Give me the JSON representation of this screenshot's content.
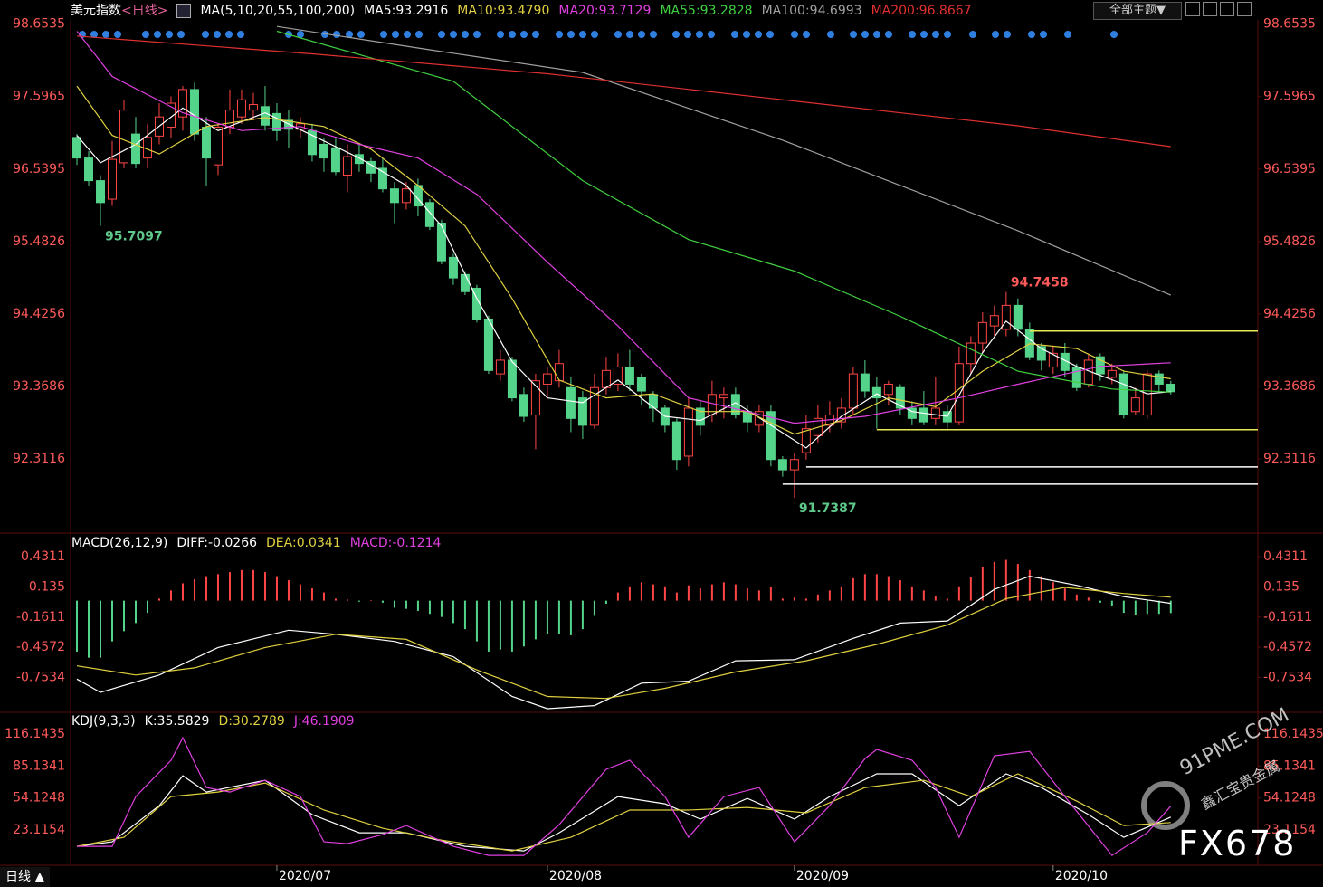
{
  "header": {
    "symbol": "美元指数",
    "period": "<日线>",
    "theme_button": "全部主题▼",
    "period_tab": "日线 ▲"
  },
  "watermark": {
    "site": "91PME.COM",
    "site_cn": "鑫汇宝贵金属",
    "brand": "FX678"
  },
  "chart_data": [
    {
      "type": "candlestick",
      "title": "MA(5,10,20,55,100,200)",
      "up_color": "#ff4545",
      "down_color": "#54d48a",
      "xlim": [
        -0.5,
        100.4
      ],
      "ylim": [
        91.24,
        98.94
      ],
      "yticks": [
        98.6535,
        97.5965,
        96.5395,
        95.4826,
        94.4256,
        93.3686,
        92.3116
      ],
      "open": [
        97.0,
        96.7,
        96.37,
        96.1,
        96.63,
        97.05,
        96.7,
        97.02,
        97.15,
        97.3,
        97.7,
        97.15,
        96.6,
        97.15,
        97.3,
        97.4,
        97.45,
        97.35,
        97.25,
        97.12,
        97.1,
        96.9,
        96.85,
        96.45,
        96.75,
        96.65,
        96.55,
        96.25,
        96.05,
        96.3,
        96.05,
        95.75,
        95.25,
        95.0,
        94.8,
        94.35,
        93.55,
        93.75,
        93.25,
        92.95,
        93.4,
        93.45,
        93.35,
        93.2,
        92.8,
        93.35,
        93.4,
        93.65,
        93.5,
        93.25,
        93.05,
        92.85,
        92.35,
        93.05,
        92.95,
        93.2,
        93.25,
        93.0,
        92.8,
        93.0,
        92.3,
        92.15,
        92.4,
        92.65,
        92.8,
        92.85,
        93.05,
        93.55,
        93.35,
        93.25,
        93.35,
        93.05,
        93.05,
        92.9,
        93.0,
        92.85,
        93.7,
        94.0,
        94.25,
        94.2,
        94.55,
        94.2,
        93.95,
        93.65,
        93.85,
        93.65,
        93.4,
        93.8,
        93.5,
        93.55,
        93.0,
        92.95,
        93.55,
        93.4
      ],
      "high": [
        97.05,
        96.8,
        96.45,
        96.95,
        97.55,
        97.3,
        97.2,
        97.5,
        97.6,
        97.75,
        97.8,
        97.3,
        97.2,
        97.7,
        97.7,
        97.65,
        97.75,
        97.5,
        97.4,
        97.3,
        97.2,
        97.0,
        97.0,
        96.9,
        96.9,
        96.7,
        96.7,
        96.35,
        96.35,
        96.4,
        96.1,
        95.8,
        95.3,
        95.05,
        94.85,
        94.4,
        93.9,
        93.8,
        93.35,
        93.55,
        93.65,
        93.9,
        93.5,
        93.3,
        93.55,
        93.8,
        93.85,
        93.9,
        93.55,
        93.3,
        93.1,
        92.9,
        93.2,
        93.15,
        93.45,
        93.35,
        93.35,
        93.1,
        93.1,
        93.1,
        92.35,
        92.4,
        92.95,
        93.1,
        93.15,
        93.2,
        93.65,
        93.75,
        93.5,
        93.45,
        93.4,
        93.15,
        93.3,
        93.5,
        93.1,
        93.95,
        94.1,
        94.45,
        94.55,
        94.7458,
        94.65,
        94.3,
        94.0,
        93.95,
        94.0,
        93.7,
        93.85,
        93.85,
        93.7,
        93.6,
        93.35,
        93.6,
        93.6,
        93.45
      ],
      "low": [
        96.6,
        96.3,
        95.7097,
        96.0,
        96.55,
        96.55,
        96.55,
        96.9,
        97.0,
        97.1,
        96.95,
        96.3,
        96.45,
        97.05,
        97.2,
        97.25,
        97.1,
        96.95,
        96.85,
        97.0,
        96.65,
        96.5,
        96.45,
        96.2,
        96.5,
        96.35,
        96.2,
        95.75,
        95.95,
        95.85,
        95.65,
        95.15,
        94.85,
        94.7,
        94.3,
        93.55,
        93.45,
        93.15,
        92.85,
        92.45,
        93.2,
        93.35,
        92.7,
        92.6,
        92.75,
        93.25,
        93.3,
        93.3,
        93.1,
        92.85,
        92.7,
        92.15,
        92.2,
        92.65,
        92.85,
        92.9,
        92.9,
        92.7,
        92.7,
        92.2,
        92.05,
        91.7387,
        92.3,
        92.55,
        92.7,
        92.75,
        92.95,
        93.2,
        92.75,
        93.1,
        92.95,
        92.8,
        92.8,
        92.8,
        92.75,
        92.8,
        93.55,
        93.85,
        94.1,
        94.1,
        94.1,
        93.75,
        93.6,
        93.55,
        93.5,
        93.3,
        93.35,
        93.45,
        93.4,
        92.9,
        92.95,
        92.9,
        93.3,
        93.25
      ],
      "close": [
        96.7,
        96.37,
        96.05,
        96.68,
        97.4,
        96.62,
        97.0,
        97.3,
        97.5,
        97.7,
        97.05,
        96.7,
        97.15,
        97.4,
        97.55,
        97.48,
        97.18,
        97.1,
        97.12,
        97.2,
        96.75,
        96.7,
        96.5,
        96.72,
        96.62,
        96.48,
        96.25,
        96.05,
        96.25,
        96.0,
        95.7,
        95.2,
        94.95,
        94.75,
        94.35,
        93.6,
        93.75,
        93.2,
        92.93,
        93.45,
        93.55,
        93.7,
        92.9,
        92.8,
        93.35,
        93.6,
        93.65,
        93.4,
        93.3,
        93.05,
        92.8,
        92.3,
        93.05,
        92.8,
        93.25,
        93.25,
        92.95,
        92.85,
        93.0,
        92.3,
        92.15,
        92.3,
        92.75,
        92.9,
        92.95,
        93.05,
        93.55,
        93.3,
        93.2,
        93.4,
        93.05,
        92.9,
        92.85,
        93.05,
        92.85,
        93.7,
        94.0,
        94.3,
        94.4,
        94.55,
        94.2,
        93.8,
        93.75,
        93.85,
        93.6,
        93.35,
        93.75,
        93.55,
        93.6,
        92.95,
        93.2,
        93.55,
        93.4,
        93.29
      ],
      "annotations": [
        {
          "x": 2,
          "value": 95.7097,
          "color": "#5ec98a"
        },
        {
          "x": 79,
          "value": 94.7458,
          "color": "#ff5a5a"
        },
        {
          "x": 61,
          "value": 91.7387,
          "color": "#5ec98a"
        }
      ],
      "hlines": [
        {
          "value": 92.193,
          "from": 62,
          "color": "#ffffff"
        },
        {
          "value": 91.942,
          "from": 60,
          "color": "#ffffff"
        },
        {
          "value": 94.175,
          "from": 81,
          "color": "#e8e850"
        },
        {
          "value": 92.735,
          "from": 68,
          "color": "#e8e850"
        }
      ],
      "series": [
        {
          "label": "MA5:93.2916",
          "color": "#ffffff",
          "x": [
            0,
            2,
            5,
            9,
            12,
            16,
            20,
            24,
            28,
            31,
            34,
            37,
            40,
            43,
            46,
            50,
            53,
            56,
            59,
            62,
            65,
            68,
            71,
            74,
            77,
            79,
            82,
            85,
            89,
            91,
            93
          ],
          "values": [
            97.03,
            96.63,
            96.9,
            97.43,
            97.1,
            97.36,
            97.03,
            96.7,
            96.3,
            95.71,
            94.65,
            93.73,
            93.2,
            93.13,
            93.46,
            92.93,
            92.87,
            93.13,
            92.8,
            92.47,
            92.93,
            93.26,
            93.0,
            92.93,
            93.86,
            94.32,
            93.92,
            93.66,
            93.4,
            93.26,
            93.2916
          ]
        },
        {
          "label": "MA10:93.4790",
          "color": "#e0d040",
          "x": [
            0,
            3,
            7,
            11,
            16,
            21,
            25,
            29,
            33,
            37,
            41,
            45,
            49,
            53,
            57,
            61,
            65,
            69,
            73,
            77,
            81,
            85,
            89,
            93
          ],
          "values": [
            97.75,
            97.03,
            96.76,
            97.16,
            97.29,
            97.16,
            96.83,
            96.3,
            95.71,
            94.65,
            93.46,
            93.2,
            93.26,
            93.0,
            93.0,
            92.67,
            92.87,
            93.2,
            93.07,
            93.59,
            93.99,
            93.92,
            93.59,
            93.479
          ]
        },
        {
          "label": "MA20:93.7129",
          "color": "#e040e0",
          "x": [
            0,
            3,
            9,
            14,
            19,
            24,
            29,
            34,
            40,
            46,
            52,
            57,
            61,
            67,
            75,
            80,
            87,
            93
          ],
          "values": [
            98.55,
            97.89,
            97.36,
            97.1,
            97.16,
            96.9,
            96.7,
            96.17,
            95.18,
            94.25,
            93.2,
            93.0,
            92.83,
            92.93,
            93.2,
            93.4,
            93.66,
            93.7129
          ]
        },
        {
          "label": "MA55:93.2828",
          "color": "#40d040",
          "x": [
            17,
            32,
            43,
            52,
            61,
            70,
            80,
            88,
            93
          ],
          "values": [
            98.55,
            97.82,
            96.37,
            95.51,
            95.05,
            94.39,
            93.59,
            93.33,
            93.2828
          ]
        },
        {
          "label": "MA100:94.6993",
          "color": "#a0a0a0",
          "x": [
            17,
            30,
            43,
            60,
            70,
            80,
            93
          ],
          "values": [
            98.62,
            98.28,
            97.95,
            96.96,
            96.3,
            95.64,
            94.6993
          ]
        },
        {
          "label": "MA200:96.8667",
          "color": "#e03030",
          "x": [
            0,
            20,
            40,
            60,
            80,
            93
          ],
          "values": [
            98.48,
            98.22,
            97.93,
            97.55,
            97.17,
            96.8667
          ]
        }
      ]
    },
    {
      "type": "bar",
      "title": "MACD(26,12,9)",
      "label": "MACD:-0.1214",
      "label_color": "#e040e0",
      "up_color": "#ff4545",
      "down_color": "#54d48a",
      "xlim": [
        -0.5,
        100.4
      ],
      "ylim": [
        -1.078,
        0.636
      ],
      "yticks": [
        0.4311,
        0.135,
        -0.1611,
        -0.4572,
        -0.7534
      ],
      "values": [
        -0.5,
        -0.56,
        -0.56,
        -0.4,
        -0.3,
        -0.22,
        -0.12,
        0.02,
        0.1,
        0.17,
        0.21,
        0.24,
        0.26,
        0.28,
        0.3,
        0.3,
        0.28,
        0.24,
        0.2,
        0.16,
        0.12,
        0.08,
        0.02,
        0.01,
        -0.01,
        0.005,
        -0.02,
        -0.07,
        -0.08,
        -0.1,
        -0.13,
        -0.16,
        -0.22,
        -0.28,
        -0.4,
        -0.5,
        -0.48,
        -0.5,
        -0.45,
        -0.38,
        -0.33,
        -0.33,
        -0.34,
        -0.28,
        -0.15,
        -0.03,
        0.08,
        0.14,
        0.18,
        0.16,
        0.14,
        0.08,
        0.15,
        0.12,
        0.16,
        0.18,
        0.16,
        0.12,
        0.1,
        0.13,
        0.02,
        0.03,
        0.02,
        0.06,
        0.1,
        0.14,
        0.22,
        0.26,
        0.26,
        0.24,
        0.2,
        0.14,
        0.1,
        0.04,
        0.02,
        0.14,
        0.23,
        0.33,
        0.38,
        0.4,
        0.36,
        0.3,
        0.24,
        0.18,
        0.12,
        0.06,
        0.03,
        -0.02,
        -0.05,
        -0.12,
        -0.14,
        -0.13,
        -0.13,
        -0.1214
      ],
      "series": [
        {
          "label": "DIFF:-0.0266",
          "color": "#ffffff",
          "x": [
            0,
            2,
            7,
            12,
            18,
            22,
            27,
            32,
            37,
            40,
            44,
            48,
            52,
            56,
            61,
            66,
            70,
            74,
            78,
            81,
            85,
            89,
            93
          ],
          "values": [
            -0.77,
            -0.9,
            -0.73,
            -0.46,
            -0.29,
            -0.33,
            -0.4,
            -0.55,
            -0.94,
            -1.06,
            -1.03,
            -0.81,
            -0.79,
            -0.59,
            -0.58,
            -0.37,
            -0.22,
            -0.2,
            0.11,
            0.24,
            0.15,
            0.04,
            -0.0266
          ]
        },
        {
          "label": "DEA:0.0341",
          "color": "#e0d040",
          "x": [
            0,
            5,
            10,
            16,
            22,
            28,
            34,
            40,
            45,
            50,
            56,
            62,
            68,
            74,
            79,
            84,
            89,
            93
          ],
          "values": [
            -0.64,
            -0.73,
            -0.66,
            -0.46,
            -0.33,
            -0.38,
            -0.68,
            -0.94,
            -0.96,
            -0.86,
            -0.7,
            -0.59,
            -0.43,
            -0.24,
            0.02,
            0.13,
            0.07,
            0.0341
          ]
        }
      ]
    },
    {
      "type": "line",
      "title": "KDJ(9,3,3)",
      "xlim": [
        -0.5,
        100.4
      ],
      "ylim": [
        -10.27,
        134.6
      ],
      "yticks": [
        116.1435,
        85.1341,
        54.1248,
        23.1154
      ],
      "xticks": [
        {
          "value": 17,
          "label": "2020/07"
        },
        {
          "value": 40,
          "label": "2020/08"
        },
        {
          "value": 61,
          "label": "2020/09"
        },
        {
          "value": 83,
          "label": "2020/10"
        }
      ],
      "series": [
        {
          "label": "K:35.5829",
          "color": "#ffffff",
          "x": [
            0,
            3,
            7,
            9,
            11,
            16,
            20,
            24,
            28,
            33,
            38,
            41,
            46,
            50,
            53,
            57,
            61,
            64,
            68,
            71,
            75,
            79,
            82,
            86,
            89,
            93
          ],
          "values": [
            7.2,
            11.6,
            46.7,
            75.7,
            59.9,
            71.3,
            38.0,
            20.4,
            20.4,
            7.2,
            2.8,
            20.4,
            55.5,
            48.5,
            33.6,
            53.7,
            33.6,
            55.5,
            77.5,
            77.5,
            46.7,
            77.5,
            64.3,
            38.0,
            16.0,
            35.5829
          ]
        },
        {
          "label": "D:30.2789",
          "color": "#e0d040",
          "x": [
            0,
            4,
            8,
            12,
            16,
            21,
            26,
            31,
            37,
            42,
            47,
            52,
            57,
            62,
            67,
            72,
            76,
            80,
            85,
            89,
            93
          ],
          "values": [
            7.2,
            16.0,
            55.5,
            59.9,
            68.7,
            42.4,
            24.8,
            13.3,
            2.8,
            16.0,
            42.4,
            42.4,
            45.0,
            39.7,
            64.3,
            71.3,
            55.5,
            77.5,
            51.1,
            27.4,
            30.2789
          ]
        },
        {
          "label": "J:46.1909",
          "color": "#e040e0",
          "x": [
            0,
            3,
            5,
            8,
            9,
            11,
            13,
            16,
            19,
            21,
            23,
            26,
            28,
            32,
            35,
            38,
            41,
            45,
            47,
            50,
            52,
            55,
            58,
            61,
            64,
            67,
            68,
            71,
            73,
            75,
            78,
            81,
            84,
            88,
            91,
            93
          ],
          "values": [
            7.2,
            7.2,
            55.5,
            90.7,
            112.6,
            64.3,
            59.9,
            71.3,
            55.5,
            11.6,
            9.8,
            18.6,
            27.4,
            7.2,
            -1.6,
            -1.6,
            28.2,
            81.9,
            90.7,
            55.5,
            16.0,
            55.5,
            64.3,
            11.6,
            46.7,
            92.4,
            101.2,
            90.7,
            64.3,
            16.0,
            95.1,
            99.4,
            55.5,
            -1.6,
            20.4,
            46.1909
          ]
        }
      ]
    }
  ]
}
